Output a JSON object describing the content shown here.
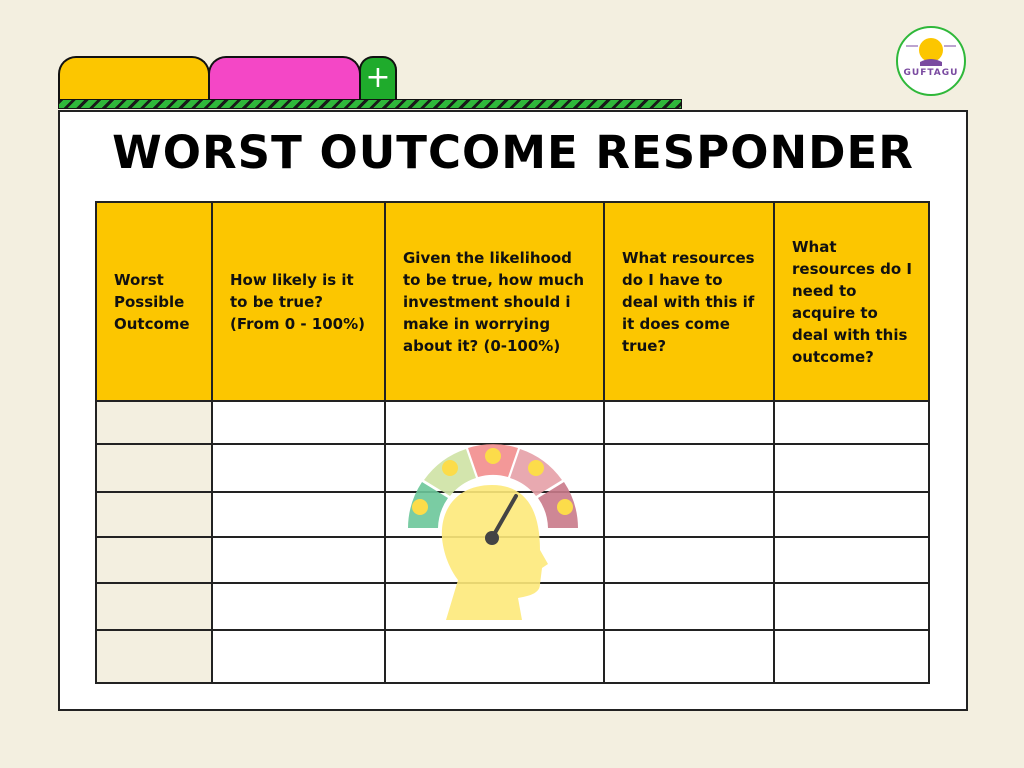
{
  "tabs": [
    {
      "label": "",
      "color": "#fcc600"
    },
    {
      "label": "",
      "color": "#f447c6"
    },
    {
      "label": "+",
      "color": "#1fab2c"
    }
  ],
  "logo": {
    "text": "GUFTAGU"
  },
  "title": "WORST OUTCOME RESPONDER",
  "table": {
    "columns": [
      "Worst Possible Outcome",
      "How likely is it to be true? (From 0 - 100%)",
      "Given the likelihood to be true, how much investment should i make in worrying about it? (0-100%)",
      "What resources do I have to deal with this if it does come true?",
      "What resources do I need to acquire to deal with this outcome?"
    ],
    "rows": [
      [
        "",
        "",
        "",
        "",
        ""
      ],
      [
        "",
        "",
        "",
        "",
        ""
      ],
      [
        "",
        "",
        "",
        "",
        ""
      ],
      [
        "",
        "",
        "",
        "",
        ""
      ],
      [
        "",
        "",
        "",
        "",
        ""
      ],
      [
        "",
        "",
        "",
        "",
        ""
      ]
    ]
  },
  "colors": {
    "header": "#fcc600",
    "background": "#f3efe0",
    "accent_green": "#1fab2c",
    "accent_pink": "#f447c6"
  },
  "illustration": {
    "icon": "head-gauge-icon",
    "gauge_segments": [
      "#6cc79a",
      "#cfe3a5",
      "#f28d8d",
      "#e6a0a8",
      "#c97a8a"
    ],
    "faces": [
      "happy",
      "slight-smile",
      "neutral",
      "frown",
      "sad"
    ]
  }
}
